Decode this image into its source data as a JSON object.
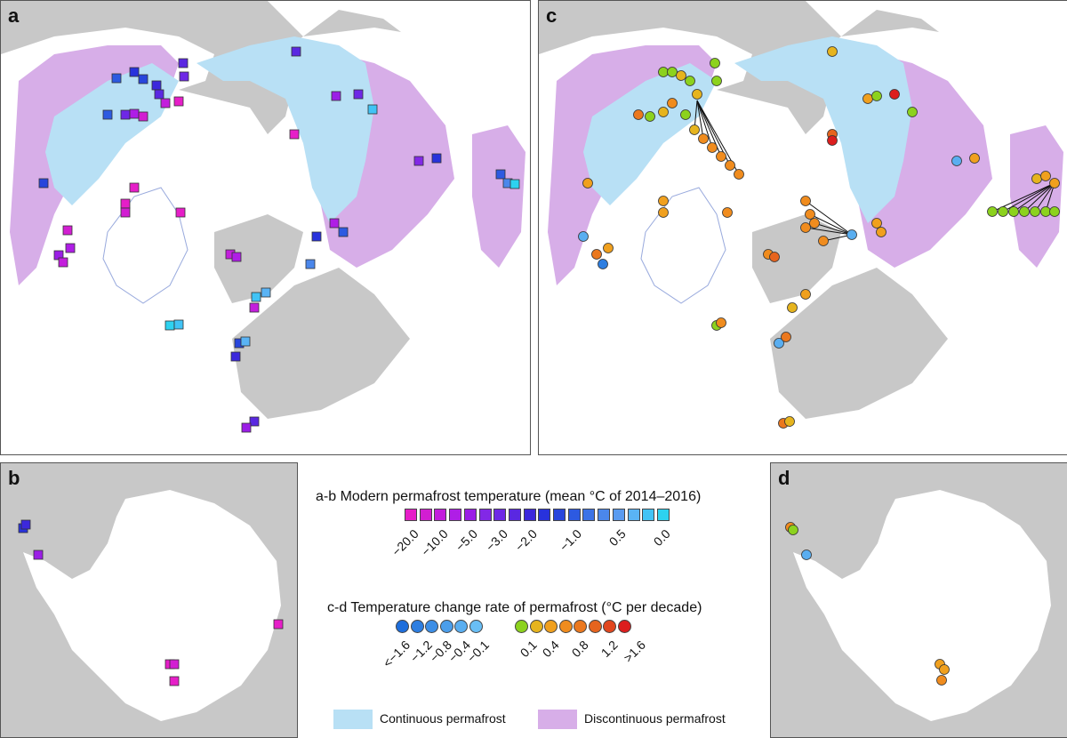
{
  "panels": {
    "a": "a",
    "b": "b",
    "c": "c",
    "d": "d"
  },
  "legend": {
    "temp_title": "a-b Modern permafrost temperature (mean °C of 2014–2016)",
    "temp_colors": [
      "#e61ec8",
      "#d21ed2",
      "#c31edc",
      "#af1ee6",
      "#9b1ee6",
      "#8228e6",
      "#6e28e6",
      "#5a28e1",
      "#3c28dc",
      "#2832dc",
      "#2846dc",
      "#2d5ae1",
      "#3c73e6",
      "#4b87eb",
      "#5a9bf0",
      "#5ab4f5",
      "#41c3f5",
      "#2dd2f0"
    ],
    "temp_ticks": [
      "−20.0",
      "−10.0",
      "−5.0",
      "−3.0",
      "−2.0",
      "−1.0",
      "0.5",
      "0.0"
    ],
    "rate_title": "c-d Temperature change rate of permafrost (°C per decade)",
    "rate_colors_neg": [
      "#1e6edc",
      "#2d7ee1",
      "#3c8ee6",
      "#4b9eeb",
      "#5aaef0",
      "#69bef5"
    ],
    "rate_colors_pos": [
      "#8cd21e",
      "#e6b41e",
      "#f0a01e",
      "#f08c1e",
      "#eb781e",
      "#e6641e",
      "#e1461e",
      "#dc1e1e"
    ],
    "rate_ticks_neg": [
      "<−1.6",
      "−1.2",
      "−0.8",
      "−0.4",
      "−0.1"
    ],
    "rate_ticks_pos": [
      "0.1",
      "0.4",
      "0.8",
      "1.2",
      ">1.6"
    ],
    "continuous_label": "Continuous permafrost",
    "discontinuous_label": "Discontinuous permafrost",
    "continuous_color": "#b8e0f5",
    "discontinuous_color": "#d7aee8",
    "land_color": "#ffffff",
    "ocean_color": "#c8c8c8"
  },
  "map_data": {
    "a_squares": [
      {
        "c": "#3c5ae6"
      },
      {
        "c": "#2846dc"
      },
      {
        "c": "#5a28e1"
      },
      {
        "c": "#9b1ee6"
      },
      {
        "c": "#d21ed2"
      },
      {
        "c": "#2d5ae1"
      },
      {
        "c": "#e61ec8"
      }
    ]
  }
}
